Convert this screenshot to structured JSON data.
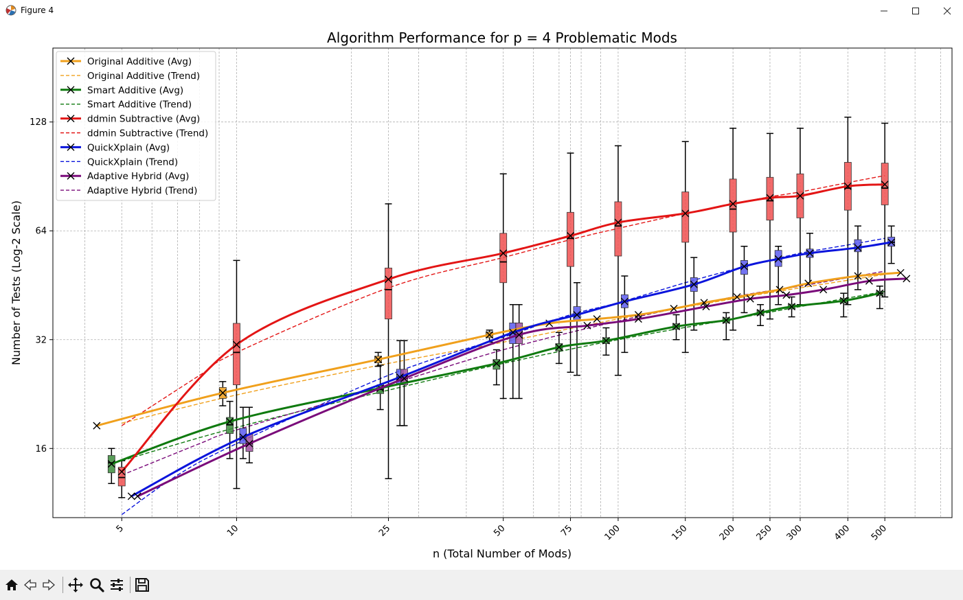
{
  "window": {
    "title": "Figure 4",
    "minimize": "—",
    "maximize": "☐",
    "close": "✕"
  },
  "toolbar": {
    "home": "home",
    "back": "back",
    "forward": "forward",
    "pan": "pan",
    "zoom": "zoom",
    "configure": "configure-subplots",
    "save": "save"
  },
  "chart_data": {
    "type": "line",
    "title": "Algorithm Performance for p = 4 Problematic Mods",
    "xlabel": "n (Total Number of Mods)",
    "ylabel": "Number of Tests (Log-2 Scale)",
    "xscale": "log",
    "yscale": "log2",
    "xlim": [
      3.3,
      750
    ],
    "ylim": [
      10.3,
      205
    ],
    "x_ticks": [
      5,
      10,
      25,
      50,
      75,
      100,
      150,
      200,
      250,
      300,
      400,
      500
    ],
    "x_tick_labels": [
      "5",
      "10",
      "25",
      "50",
      "75",
      "100",
      "150",
      "200",
      "250",
      "300",
      "400",
      "500"
    ],
    "y_ticks": [
      16,
      32,
      64,
      128
    ],
    "y_tick_labels": [
      "16",
      "32",
      "64",
      "128"
    ],
    "grid": true,
    "legend_position": "upper-left",
    "series": [
      {
        "name": "Original Additive (Avg)",
        "color": "#f0a01c",
        "style": "avg",
        "x": [
          4.3,
          9.2,
          23.5,
          46,
          66,
          88,
          113,
          140,
          168,
          205,
          265,
          315,
          425,
          550
        ],
        "y": [
          18.5,
          22.8,
          28.2,
          33,
          35.5,
          36.5,
          37.5,
          39,
          40.5,
          42,
          44,
          45.8,
          48,
          49
        ]
      },
      {
        "name": "Original Additive (Trend)",
        "color": "#f0a01c",
        "style": "trend",
        "x": [
          5,
          10,
          25,
          50,
          100,
          200,
          300,
          500
        ],
        "y": [
          18.8,
          22.5,
          27.5,
          31.5,
          36.5,
          41.5,
          44.5,
          48.5
        ]
      },
      {
        "name": "Smart Additive (Avg)",
        "color": "#0f7a0f",
        "style": "avg",
        "x": [
          4.7,
          9.6,
          23.8,
          48,
          70,
          93,
          142,
          192,
          236,
          285,
          390,
          485
        ],
        "y": [
          14.5,
          19,
          23.5,
          27.5,
          30.5,
          31.8,
          34.8,
          36.2,
          38,
          39.5,
          41,
          43
        ]
      },
      {
        "name": "Smart Additive (Trend)",
        "color": "#0f7a0f",
        "style": "trend",
        "x": [
          5,
          10,
          25,
          50,
          100,
          200,
          300,
          500
        ],
        "y": [
          14.8,
          18.3,
          23.2,
          27.5,
          32,
          36.5,
          39.5,
          43.5
        ]
      },
      {
        "name": "ddmin Subtractive (Avg)",
        "color": "#e31515",
        "style": "avg",
        "x": [
          5,
          10,
          25,
          50,
          75,
          100,
          150,
          200,
          250,
          300,
          400,
          500
        ],
        "y": [
          13.8,
          31,
          47,
          55.5,
          62,
          67.5,
          71.5,
          76,
          79,
          80,
          85,
          86
        ]
      },
      {
        "name": "ddmin Subtractive (Trend)",
        "color": "#e31515",
        "style": "trend",
        "x": [
          5,
          8,
          10,
          25,
          50,
          75,
          100,
          150,
          200,
          250,
          300,
          400,
          500
        ],
        "y": [
          18.5,
          25.5,
          29.5,
          44.5,
          54,
          60.5,
          65,
          71.5,
          76,
          79.5,
          82,
          87,
          91
        ]
      },
      {
        "name": "QuickXplain (Avg)",
        "color": "#0a14dc",
        "style": "avg",
        "x": [
          5.3,
          10.4,
          26.8,
          53,
          78,
          104,
          158,
          214,
          263,
          318,
          425,
          520
        ],
        "y": [
          11.8,
          17.2,
          25.2,
          33.5,
          37.5,
          40.8,
          45.5,
          51,
          53.5,
          55.5,
          57.5,
          59.5
        ]
      },
      {
        "name": "QuickXplain (Trend)",
        "color": "#0a14dc",
        "style": "trend",
        "x": [
          5,
          7,
          10,
          25,
          50,
          75,
          100,
          150,
          200,
          250,
          300,
          400,
          500
        ],
        "y": [
          10.5,
          13.5,
          16.5,
          25.5,
          32.5,
          37.5,
          40.5,
          46,
          50,
          53,
          55.5,
          58.5,
          61
        ]
      },
      {
        "name": "Adaptive Hybrid (Avg)",
        "color": "#7a0b7a",
        "style": "avg",
        "x": [
          5.5,
          10.8,
          27.5,
          55,
          83,
          113,
          170,
          222,
          276,
          345,
          455,
          570
        ],
        "y": [
          11.8,
          16.5,
          25,
          33,
          35,
          36.5,
          39.5,
          41.5,
          42.5,
          44,
          46.5,
          47.2
        ]
      },
      {
        "name": "Adaptive Hybrid (Trend)",
        "color": "#7a0b7a",
        "style": "trend",
        "x": [
          5,
          8,
          10,
          25,
          50,
          100,
          200,
          300,
          500
        ],
        "y": [
          13.5,
          16.5,
          18,
          24,
          30,
          36,
          42,
          45,
          49.5
        ]
      }
    ],
    "boxes": [
      {
        "x": 9.2,
        "color": "#f0a01c",
        "q1": 22,
        "med": 22.8,
        "q3": 23.6,
        "lo": 21,
        "hi": 24.5
      },
      {
        "x": 23.5,
        "color": "#f0a01c",
        "q1": 27.6,
        "med": 28.2,
        "q3": 28.8,
        "lo": 27,
        "hi": 29.5
      },
      {
        "x": 46,
        "color": "#f0a01c",
        "q1": 32.4,
        "med": 33,
        "q3": 33.6,
        "lo": 31.5,
        "hi": 34
      },
      {
        "x": 4.7,
        "color": "#3c8c3c",
        "q1": 13.7,
        "med": 14.6,
        "q3": 15.3,
        "lo": 12.8,
        "hi": 16
      },
      {
        "x": 9.6,
        "color": "#3c8c3c",
        "q1": 17.6,
        "med": 18.6,
        "q3": 19.5,
        "lo": 15,
        "hi": 21.6
      },
      {
        "x": 23.8,
        "color": "#3c8c3c",
        "q1": 22.7,
        "med": 23.3,
        "q3": 23.9,
        "lo": 20.5,
        "hi": 27.2
      },
      {
        "x": 48,
        "color": "#3c8c3c",
        "q1": 26.5,
        "med": 27.5,
        "q3": 28.2,
        "lo": 24,
        "hi": 30
      },
      {
        "x": 70,
        "color": "#3c8c3c",
        "q1": 29.8,
        "med": 30.5,
        "q3": 31.2,
        "lo": 27.5,
        "hi": 33.5
      },
      {
        "x": 93,
        "color": "#3c8c3c",
        "q1": 31.2,
        "med": 31.8,
        "q3": 32.4,
        "lo": 29,
        "hi": 34.5
      },
      {
        "x": 142,
        "color": "#3c8c3c",
        "q1": 34.2,
        "med": 34.8,
        "q3": 35.4,
        "lo": 32,
        "hi": 37.5
      },
      {
        "x": 192,
        "color": "#3c8c3c",
        "q1": 35.6,
        "med": 36.2,
        "q3": 36.8,
        "lo": 32,
        "hi": 38
      },
      {
        "x": 236,
        "color": "#3c8c3c",
        "q1": 37.4,
        "med": 38,
        "q3": 38.6,
        "lo": 35,
        "hi": 40
      },
      {
        "x": 285,
        "color": "#3c8c3c",
        "q1": 38.9,
        "med": 39.5,
        "q3": 40.1,
        "lo": 37,
        "hi": 42
      },
      {
        "x": 390,
        "color": "#3c8c3c",
        "q1": 40.4,
        "med": 41,
        "q3": 41.6,
        "lo": 37,
        "hi": 43
      },
      {
        "x": 485,
        "color": "#3c8c3c",
        "q1": 42.4,
        "med": 43,
        "q3": 43.6,
        "lo": 39,
        "hi": 45
      },
      {
        "x": 5,
        "color": "#f05050",
        "q1": 12.6,
        "med": 13.3,
        "q3": 14.2,
        "lo": 11.7,
        "hi": 14.8
      },
      {
        "x": 10,
        "color": "#f05050",
        "q1": 24,
        "med": 29.5,
        "q3": 35.5,
        "lo": 12.4,
        "hi": 53
      },
      {
        "x": 25,
        "color": "#f05050",
        "q1": 36.5,
        "med": 44,
        "q3": 50.5,
        "lo": 13.2,
        "hi": 76
      },
      {
        "x": 50,
        "color": "#f05050",
        "q1": 46,
        "med": 52.5,
        "q3": 63,
        "lo": 22,
        "hi": 92
      },
      {
        "x": 75,
        "color": "#f05050",
        "q1": 51,
        "med": 61,
        "q3": 72,
        "lo": 26,
        "hi": 105
      },
      {
        "x": 100,
        "color": "#f05050",
        "q1": 54.5,
        "med": 66,
        "q3": 77,
        "lo": 25.5,
        "hi": 110
      },
      {
        "x": 150,
        "color": "#f05050",
        "q1": 59.5,
        "med": 71.5,
        "q3": 82,
        "lo": 29.5,
        "hi": 113
      },
      {
        "x": 200,
        "color": "#f05050",
        "q1": 63.5,
        "med": 73.5,
        "q3": 89,
        "lo": 34,
        "hi": 123
      },
      {
        "x": 250,
        "color": "#f05050",
        "q1": 68.5,
        "med": 77.5,
        "q3": 90,
        "lo": 36.5,
        "hi": 119
      },
      {
        "x": 300,
        "color": "#f05050",
        "q1": 69.5,
        "med": 80,
        "q3": 92,
        "lo": 40,
        "hi": 123
      },
      {
        "x": 400,
        "color": "#f05050",
        "q1": 73,
        "med": 84,
        "q3": 99,
        "lo": 40,
        "hi": 132
      },
      {
        "x": 500,
        "color": "#f05050",
        "q1": 75.5,
        "med": 84,
        "q3": 98.5,
        "lo": 42,
        "hi": 127
      },
      {
        "x": 10.4,
        "color": "#5a5aee",
        "q1": 16.5,
        "med": 17.2,
        "q3": 18.2,
        "lo": 15,
        "hi": 20.8
      },
      {
        "x": 26.8,
        "color": "#5a5aee",
        "q1": 24.2,
        "med": 25.2,
        "q3": 26.5,
        "lo": 18.5,
        "hi": 31.8
      },
      {
        "x": 53,
        "color": "#5a5aee",
        "q1": 31.2,
        "med": 33.5,
        "q3": 35.6,
        "lo": 22,
        "hi": 40
      },
      {
        "x": 78,
        "color": "#5a5aee",
        "q1": 36,
        "med": 37.5,
        "q3": 39.5,
        "lo": 25.5,
        "hi": 46
      },
      {
        "x": 104,
        "color": "#5a5aee",
        "q1": 39.2,
        "med": 40.8,
        "q3": 42.6,
        "lo": 29.5,
        "hi": 48
      },
      {
        "x": 158,
        "color": "#5a5aee",
        "q1": 43.5,
        "med": 45.5,
        "q3": 47.5,
        "lo": 34,
        "hi": 54
      },
      {
        "x": 214,
        "color": "#5a5aee",
        "q1": 48.5,
        "med": 51,
        "q3": 53,
        "lo": 38,
        "hi": 58
      },
      {
        "x": 263,
        "color": "#5a5aee",
        "q1": 51,
        "med": 53.5,
        "q3": 56.5,
        "lo": 40,
        "hi": 58
      },
      {
        "x": 318,
        "color": "#5a5aee",
        "q1": 54,
        "med": 55.5,
        "q3": 57,
        "lo": 46,
        "hi": 63
      },
      {
        "x": 425,
        "color": "#5a5aee",
        "q1": 56,
        "med": 57.5,
        "q3": 60.5,
        "lo": 44,
        "hi": 66
      },
      {
        "x": 520,
        "color": "#5a5aee",
        "q1": 58,
        "med": 59.5,
        "q3": 61.5,
        "lo": 52,
        "hi": 66
      },
      {
        "x": 10.8,
        "color": "#a050a0",
        "q1": 15.7,
        "med": 16.5,
        "q3": 17.5,
        "lo": 14.6,
        "hi": 20.8
      },
      {
        "x": 27.5,
        "color": "#a050a0",
        "q1": 24,
        "med": 25,
        "q3": 26.5,
        "lo": 18.5,
        "hi": 31.8
      },
      {
        "x": 55,
        "color": "#a050a0",
        "q1": 31.2,
        "med": 33,
        "q3": 35.6,
        "lo": 22,
        "hi": 40
      }
    ]
  }
}
